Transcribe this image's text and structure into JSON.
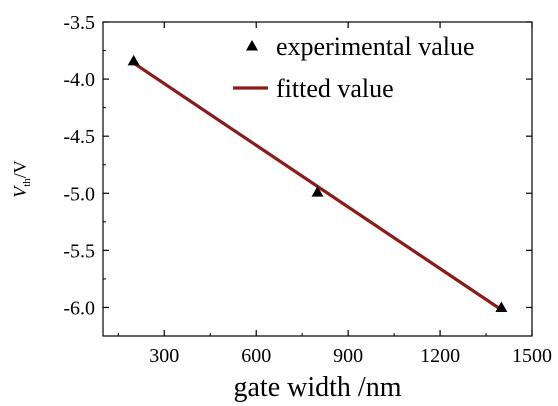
{
  "chart_data": {
    "type": "scatter",
    "xlabel": "gate width /nm",
    "ylabel": {
      "symbol": "V",
      "subscript": "th",
      "unit": "/V"
    },
    "xlim": [
      100,
      1500
    ],
    "ylim": [
      -6.25,
      -3.5
    ],
    "xticks": [
      300,
      600,
      900,
      1200,
      1500
    ],
    "yticks": [
      -3.5,
      -4.0,
      -4.5,
      -5.0,
      -5.5,
      -6.0
    ],
    "xtick_labels": [
      "300",
      "600",
      "900",
      "1200",
      "1500"
    ],
    "ytick_labels": [
      "-3.5",
      "-4.0",
      "-4.5",
      "-5.0",
      "-5.5",
      "-6.0"
    ],
    "grid": false,
    "legend_position": "top-right",
    "series": [
      {
        "name": "experimental value",
        "kind": "scatter",
        "marker": "triangle",
        "color": "#000000",
        "x": [
          200,
          800,
          1400
        ],
        "y": [
          -3.84,
          -4.99,
          -6.0
        ]
      },
      {
        "name": "fitted value",
        "kind": "line",
        "color": "#8b1a1a",
        "x": [
          200,
          1400
        ],
        "y": [
          -3.86,
          -6.02
        ]
      }
    ]
  }
}
